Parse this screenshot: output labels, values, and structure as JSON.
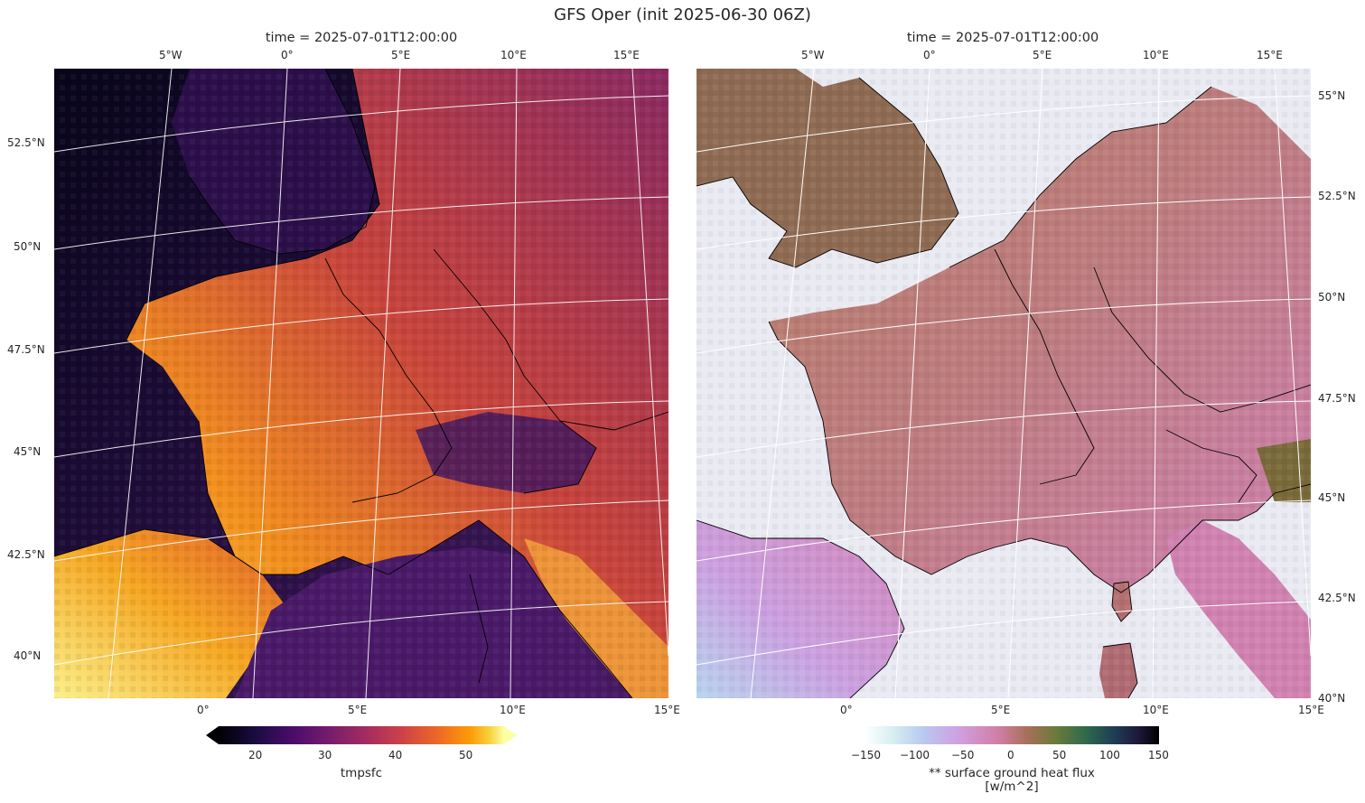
{
  "figure": {
    "suptitle": "GFS Oper (init 2025-06-30 06Z)"
  },
  "colors": {
    "left_ocean": "#2a0c48",
    "left_land_cool": "#7a2a6a",
    "left_land_hot": "#f08a22",
    "right_ocean": "#eaeaf2",
    "right_land": "#b87a6e",
    "right_land_pink": "#cc7fa8",
    "right_uk": "#8a6e50",
    "graticule": "#ffffff",
    "coastline": "#000000"
  },
  "panels": [
    {
      "title": "time = 2025-07-01T12:00:00",
      "variable": "tmpsfc",
      "colormap": "inferno",
      "top_lon_ticks": [
        "5°W",
        "0°",
        "5°E",
        "10°E",
        "15°E"
      ],
      "bottom_lon_ticks": [
        "0°",
        "5°E",
        "10°E",
        "15°E"
      ],
      "lat_ticks": [
        "52.5°N",
        "50°N",
        "47.5°N",
        "45°N",
        "42.5°N",
        "40°N"
      ],
      "colorbar": {
        "label": "tmpsfc",
        "ticks": [
          "20",
          "30",
          "40",
          "50"
        ],
        "vmin": 13,
        "vmax": 55,
        "tick_values": [
          20,
          30,
          40,
          50
        ],
        "extend": "both"
      }
    },
    {
      "title": "time = 2025-07-01T12:00:00",
      "variable": "surface ground heat flux",
      "colormap": "cubehelix_r",
      "top_lon_ticks": [
        "5°W",
        "0°",
        "5°E",
        "10°E",
        "15°E"
      ],
      "bottom_lon_ticks": [
        "0°",
        "5°E",
        "10°E",
        "15°E"
      ],
      "lat_ticks": [
        "55°N",
        "52.5°N",
        "50°N",
        "47.5°N",
        "45°N",
        "42.5°N",
        "40°N"
      ],
      "colorbar": {
        "label_line1": "** surface ground heat flux",
        "label_line2": "[w/m^2]",
        "ticks": [
          "−150",
          "−100",
          "−50",
          "0",
          "50",
          "100",
          "150"
        ],
        "vmin": -150,
        "vmax": 150,
        "tick_values": [
          -150,
          -100,
          -50,
          0,
          50,
          100,
          150
        ],
        "extend": "neither"
      }
    }
  ]
}
